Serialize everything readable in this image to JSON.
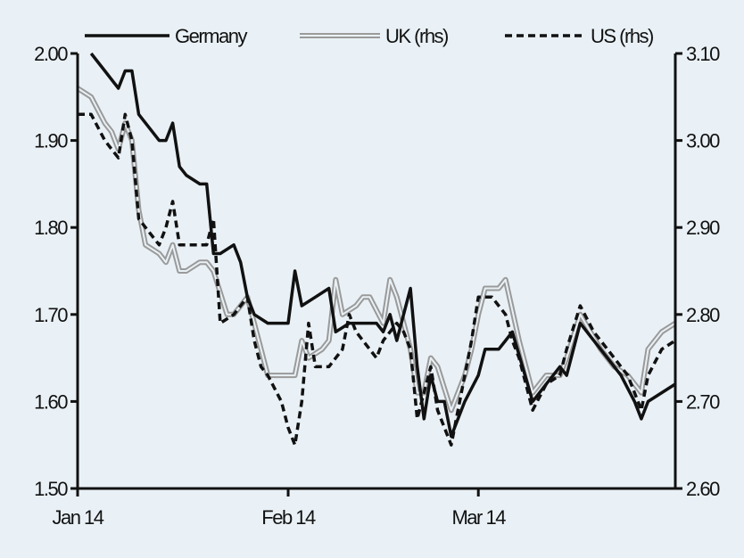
{
  "chart_data": {
    "type": "line",
    "x_tick_labels": [
      "Jan 14",
      "Feb 14",
      "Mar 14"
    ],
    "x_tick_days": [
      0,
      31,
      59
    ],
    "x_range_days": [
      0,
      88
    ],
    "y_left": {
      "ylim": [
        1.5,
        2.0
      ],
      "ticks": [
        "1.50",
        "1.60",
        "1.70",
        "1.80",
        "1.90",
        "2.00"
      ]
    },
    "y_right": {
      "ylim": [
        2.6,
        3.1
      ],
      "ticks": [
        "2.60",
        "2.70",
        "2.80",
        "2.90",
        "3.00",
        "3.10"
      ]
    },
    "legend_position": "top",
    "series": [
      {
        "name": "Germany",
        "axis": "left",
        "style": "solid",
        "color": "#111111",
        "points": [
          [
            2,
            2.0
          ],
          [
            4,
            1.98
          ],
          [
            6,
            1.96
          ],
          [
            7,
            1.98
          ],
          [
            8,
            1.98
          ],
          [
            9,
            1.93
          ],
          [
            11,
            1.91
          ],
          [
            12,
            1.9
          ],
          [
            13,
            1.9
          ],
          [
            14,
            1.92
          ],
          [
            15,
            1.87
          ],
          [
            16,
            1.86
          ],
          [
            18,
            1.85
          ],
          [
            19,
            1.85
          ],
          [
            20,
            1.77
          ],
          [
            21,
            1.77
          ],
          [
            23,
            1.78
          ],
          [
            24,
            1.76
          ],
          [
            25,
            1.72
          ],
          [
            26,
            1.7
          ],
          [
            28,
            1.69
          ],
          [
            30,
            1.69
          ],
          [
            31,
            1.69
          ],
          [
            32,
            1.75
          ],
          [
            33,
            1.71
          ],
          [
            35,
            1.72
          ],
          [
            37,
            1.73
          ],
          [
            38,
            1.68
          ],
          [
            40,
            1.69
          ],
          [
            42,
            1.69
          ],
          [
            44,
            1.69
          ],
          [
            45,
            1.68
          ],
          [
            46,
            1.7
          ],
          [
            47,
            1.67
          ],
          [
            49,
            1.73
          ],
          [
            50,
            1.64
          ],
          [
            51,
            1.58
          ],
          [
            52,
            1.63
          ],
          [
            53,
            1.6
          ],
          [
            54,
            1.6
          ],
          [
            55,
            1.56
          ],
          [
            57,
            1.6
          ],
          [
            59,
            1.63
          ],
          [
            60,
            1.66
          ],
          [
            62,
            1.66
          ],
          [
            63,
            1.67
          ],
          [
            64,
            1.68
          ],
          [
            67,
            1.6
          ],
          [
            69,
            1.62
          ],
          [
            71,
            1.64
          ],
          [
            72,
            1.63
          ],
          [
            74,
            1.69
          ],
          [
            76,
            1.67
          ],
          [
            78,
            1.65
          ],
          [
            80,
            1.63
          ],
          [
            82,
            1.6
          ],
          [
            83,
            1.58
          ],
          [
            84,
            1.6
          ],
          [
            88,
            1.62
          ]
        ]
      },
      {
        "name": "UK (rhs)",
        "axis": "right",
        "style": "double",
        "color": "#9a9a9a",
        "points": [
          [
            0,
            3.06
          ],
          [
            2,
            3.05
          ],
          [
            4,
            3.02
          ],
          [
            5,
            3.01
          ],
          [
            6,
            2.99
          ],
          [
            7,
            3.02
          ],
          [
            8,
            3.0
          ],
          [
            9,
            2.92
          ],
          [
            10,
            2.88
          ],
          [
            12,
            2.87
          ],
          [
            13,
            2.86
          ],
          [
            14,
            2.88
          ],
          [
            15,
            2.85
          ],
          [
            16,
            2.85
          ],
          [
            18,
            2.86
          ],
          [
            19,
            2.86
          ],
          [
            20,
            2.85
          ],
          [
            22,
            2.8
          ],
          [
            23,
            2.8
          ],
          [
            25,
            2.82
          ],
          [
            26,
            2.79
          ],
          [
            27,
            2.76
          ],
          [
            28,
            2.73
          ],
          [
            29,
            2.73
          ],
          [
            31,
            2.73
          ],
          [
            32,
            2.73
          ],
          [
            33,
            2.77
          ],
          [
            34,
            2.75
          ],
          [
            36,
            2.76
          ],
          [
            37,
            2.77
          ],
          [
            38,
            2.84
          ],
          [
            39,
            2.8
          ],
          [
            41,
            2.81
          ],
          [
            42,
            2.82
          ],
          [
            43,
            2.82
          ],
          [
            45,
            2.79
          ],
          [
            46,
            2.84
          ],
          [
            47,
            2.82
          ],
          [
            48,
            2.79
          ],
          [
            49,
            2.76
          ],
          [
            50,
            2.71
          ],
          [
            51,
            2.71
          ],
          [
            52,
            2.75
          ],
          [
            53,
            2.74
          ],
          [
            55,
            2.69
          ],
          [
            57,
            2.73
          ],
          [
            58,
            2.76
          ],
          [
            59,
            2.8
          ],
          [
            60,
            2.83
          ],
          [
            62,
            2.83
          ],
          [
            63,
            2.84
          ],
          [
            65,
            2.77
          ],
          [
            67,
            2.71
          ],
          [
            69,
            2.73
          ],
          [
            71,
            2.73
          ],
          [
            72,
            2.75
          ],
          [
            74,
            2.8
          ],
          [
            77,
            2.76
          ],
          [
            79,
            2.74
          ],
          [
            81,
            2.73
          ],
          [
            82,
            2.72
          ],
          [
            83,
            2.71
          ],
          [
            84,
            2.76
          ],
          [
            86,
            2.78
          ],
          [
            88,
            2.79
          ]
        ]
      },
      {
        "name": "US (rhs)",
        "axis": "right",
        "style": "dashed",
        "color": "#111111",
        "points": [
          [
            0,
            3.03
          ],
          [
            2,
            3.03
          ],
          [
            4,
            3.0
          ],
          [
            5,
            2.99
          ],
          [
            6,
            2.98
          ],
          [
            7,
            3.03
          ],
          [
            8,
            3.0
          ],
          [
            9,
            2.91
          ],
          [
            10,
            2.9
          ],
          [
            12,
            2.88
          ],
          [
            13,
            2.9
          ],
          [
            14,
            2.93
          ],
          [
            15,
            2.88
          ],
          [
            17,
            2.88
          ],
          [
            19,
            2.88
          ],
          [
            20,
            2.91
          ],
          [
            21,
            2.79
          ],
          [
            23,
            2.8
          ],
          [
            25,
            2.82
          ],
          [
            26,
            2.77
          ],
          [
            27,
            2.74
          ],
          [
            28,
            2.73
          ],
          [
            30,
            2.7
          ],
          [
            31,
            2.67
          ],
          [
            32,
            2.65
          ],
          [
            33,
            2.7
          ],
          [
            34,
            2.79
          ],
          [
            35,
            2.74
          ],
          [
            37,
            2.74
          ],
          [
            39,
            2.76
          ],
          [
            40,
            2.8
          ],
          [
            41,
            2.78
          ],
          [
            43,
            2.76
          ],
          [
            44,
            2.75
          ],
          [
            45,
            2.77
          ],
          [
            46,
            2.78
          ],
          [
            47,
            2.79
          ],
          [
            48,
            2.78
          ],
          [
            49,
            2.76
          ],
          [
            50,
            2.68
          ],
          [
            51,
            2.71
          ],
          [
            52,
            2.74
          ],
          [
            53,
            2.69
          ],
          [
            55,
            2.65
          ],
          [
            57,
            2.73
          ],
          [
            58,
            2.77
          ],
          [
            59,
            2.82
          ],
          [
            61,
            2.82
          ],
          [
            63,
            2.8
          ],
          [
            64,
            2.77
          ],
          [
            65,
            2.75
          ],
          [
            67,
            2.69
          ],
          [
            69,
            2.72
          ],
          [
            71,
            2.73
          ],
          [
            72,
            2.76
          ],
          [
            74,
            2.81
          ],
          [
            76,
            2.78
          ],
          [
            78,
            2.76
          ],
          [
            80,
            2.74
          ],
          [
            81,
            2.73
          ],
          [
            82,
            2.71
          ],
          [
            83,
            2.69
          ],
          [
            84,
            2.73
          ],
          [
            86,
            2.76
          ],
          [
            88,
            2.77
          ]
        ]
      }
    ]
  }
}
